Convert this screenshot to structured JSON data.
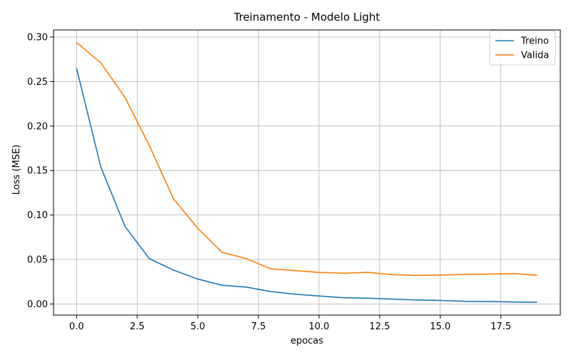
{
  "chart_data": {
    "type": "line",
    "title": "Treinamento - Modelo Light",
    "xlabel": "epocas",
    "ylabel": "Loss (MSE)",
    "xlim": [
      -0.95,
      19.95
    ],
    "ylim": [
      -0.0125,
      0.308
    ],
    "xticks": [
      0.0,
      2.5,
      5.0,
      7.5,
      10.0,
      12.5,
      15.0,
      17.5
    ],
    "xtick_labels": [
      "0.0",
      "2.5",
      "5.0",
      "7.5",
      "10.0",
      "12.5",
      "15.0",
      "17.5"
    ],
    "yticks": [
      0.0,
      0.05,
      0.1,
      0.15,
      0.2,
      0.25,
      0.3
    ],
    "ytick_labels": [
      "0.00",
      "0.05",
      "0.10",
      "0.15",
      "0.20",
      "0.25",
      "0.30"
    ],
    "grid": true,
    "legend_position": "top-right",
    "x": [
      0,
      1,
      2,
      3,
      4,
      5,
      6,
      7,
      8,
      9,
      10,
      11,
      12,
      13,
      14,
      15,
      16,
      17,
      18,
      19
    ],
    "series": [
      {
        "name": "Treino",
        "color": "#1f77b4",
        "values": [
          0.265,
          0.154,
          0.087,
          0.051,
          0.038,
          0.028,
          0.021,
          0.019,
          0.014,
          0.011,
          0.009,
          0.007,
          0.0065,
          0.0055,
          0.0045,
          0.004,
          0.003,
          0.0028,
          0.0022,
          0.002
        ]
      },
      {
        "name": "Valida",
        "color": "#ff7f0e",
        "values": [
          0.294,
          0.271,
          0.232,
          0.178,
          0.118,
          0.085,
          0.058,
          0.051,
          0.0395,
          0.0375,
          0.0355,
          0.0345,
          0.0355,
          0.033,
          0.032,
          0.0325,
          0.0332,
          0.0335,
          0.0342,
          0.0322
        ]
      }
    ]
  }
}
